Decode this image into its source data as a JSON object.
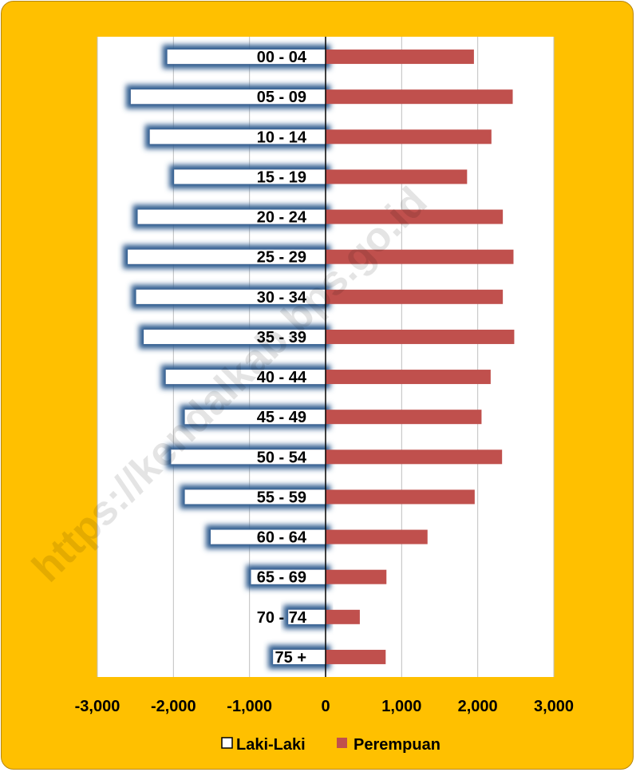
{
  "watermark": "https://kendalkab.bps.go.id",
  "colors": {
    "frame_bg": "#FFC000",
    "plot_bg": "#FFFFFF",
    "male_fill": "#FFFFFF",
    "male_glow": "#2F5C8F",
    "female_fill": "#C0504D",
    "grid": "#BFBFBF"
  },
  "chart_data": {
    "type": "bar",
    "orientation": "horizontal",
    "categories": [
      "00 - 04",
      "05 - 09",
      "10 - 14",
      "15 - 19",
      "20 - 24",
      "25 - 29",
      "30 - 34",
      "35 - 39",
      "40 - 44",
      "45 - 49",
      "50 - 54",
      "55 - 59",
      "60 - 64",
      "65 - 69",
      "70 - 74",
      "75 +"
    ],
    "series": [
      {
        "name": "Laki-Laki",
        "values": [
          -2080,
          -2560,
          -2310,
          -1990,
          -2470,
          -2600,
          -2490,
          -2390,
          -2100,
          -1850,
          -2030,
          -1850,
          -1510,
          -980,
          -490,
          -690
        ]
      },
      {
        "name": "Perempuan",
        "values": [
          1950,
          2460,
          2180,
          1860,
          2330,
          2470,
          2330,
          2480,
          2170,
          2050,
          2320,
          1960,
          1340,
          800,
          450,
          790
        ]
      }
    ],
    "xlim": [
      -3000,
      3000
    ],
    "x_ticks": [
      "-3,000",
      "-2,000",
      "-1,000",
      "0",
      "1,000",
      "2,000",
      "3,000"
    ],
    "grid": true,
    "legend_position": "bottom"
  }
}
